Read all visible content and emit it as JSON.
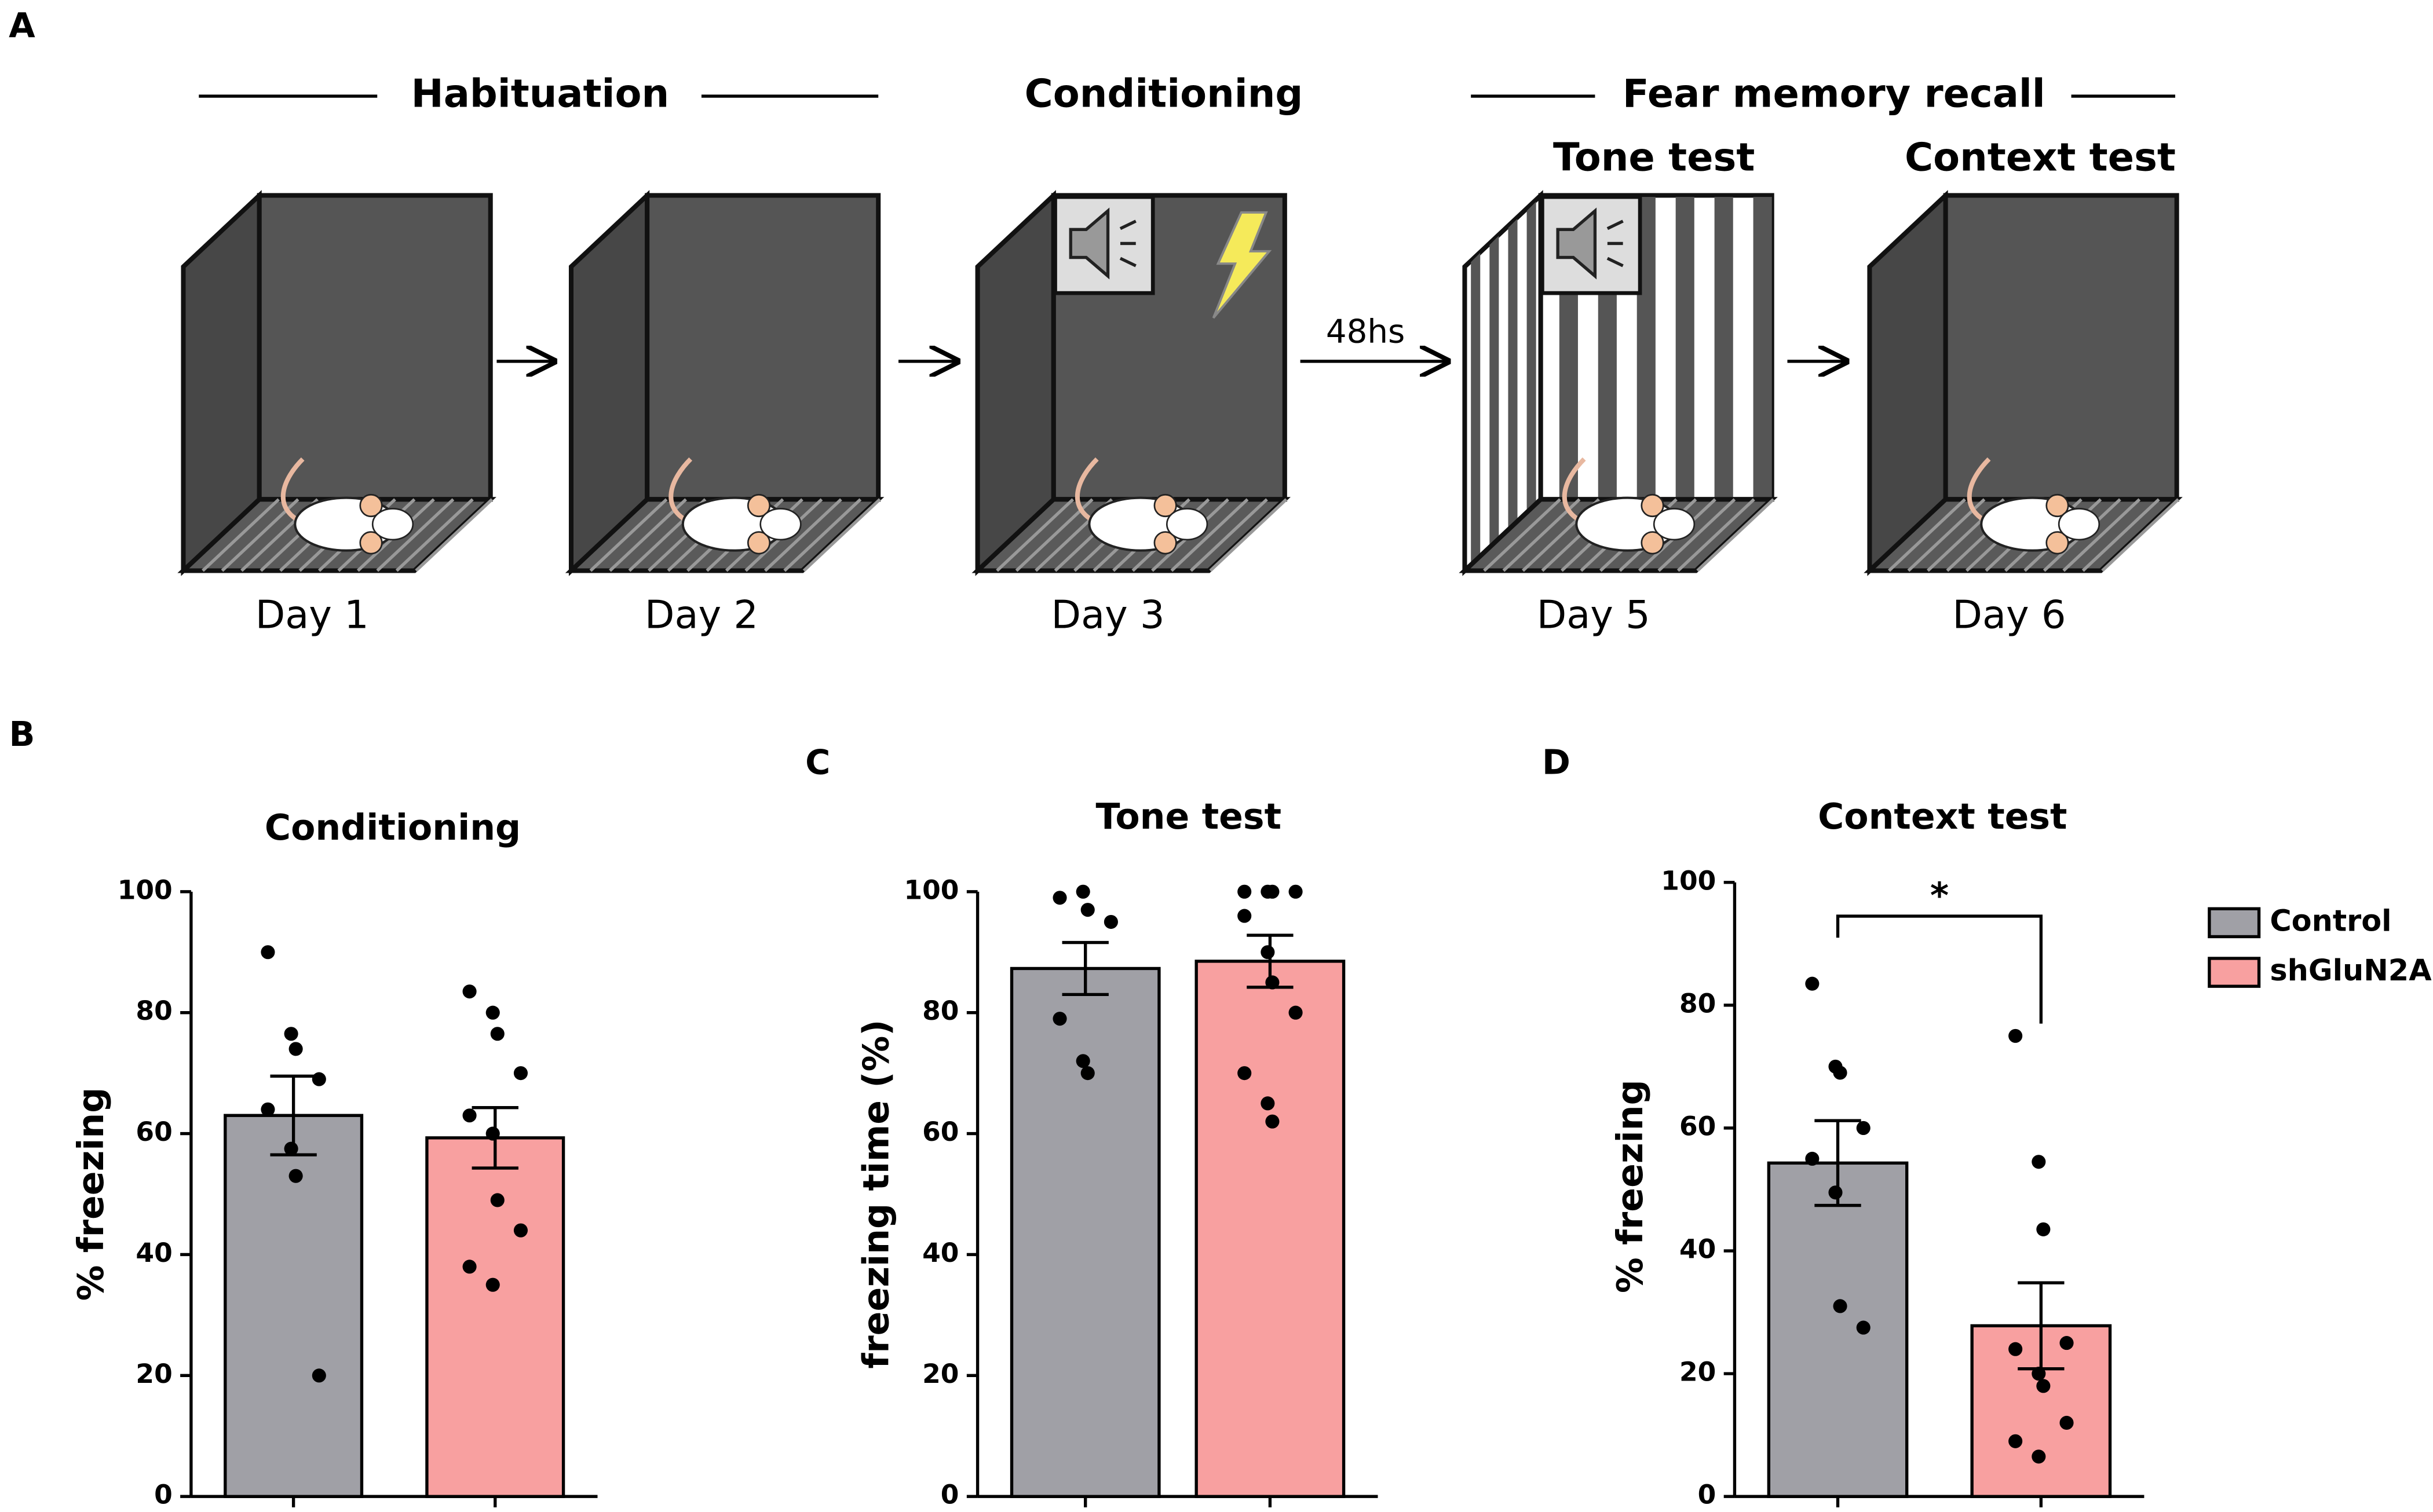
{
  "panel_a": {
    "letter": "A",
    "phases": [
      "Habituation",
      "Conditioning",
      "Fear memory recall"
    ],
    "tests": [
      "Tone test",
      "Context test"
    ],
    "interval": "48hs",
    "days": [
      "Day 1",
      "Day 2",
      "Day 3",
      "Day 5",
      "Day 6"
    ]
  },
  "legend": [
    {
      "name": "Control",
      "color": "#a0a0a6"
    },
    {
      "name": "shGluN2A",
      "color": "#f8a0a0"
    }
  ],
  "chart_data": [
    {
      "type": "bar",
      "panel": "B",
      "title": "Conditioning",
      "y_label": "% freezing",
      "ylim": [
        0,
        100
      ],
      "yticks": [
        0,
        20,
        40,
        60,
        80,
        100
      ],
      "values": [
        63,
        59.3
      ],
      "errors": [
        6.5,
        5
      ],
      "points": [
        [
          90,
          76.5,
          74,
          69,
          64,
          57.5,
          53,
          20
        ],
        [
          83.5,
          80,
          76.5,
          70,
          63,
          60,
          49,
          44,
          38,
          35
        ]
      ]
    },
    {
      "type": "bar",
      "panel": "C",
      "title": "Tone test",
      "y_label": "freezing time (%)",
      "ylim": [
        0,
        100
      ],
      "yticks": [
        0,
        20,
        40,
        60,
        80,
        100
      ],
      "values": [
        87.3,
        88.5
      ],
      "errors": [
        4.3,
        4.3
      ],
      "points": [
        [
          99,
          100,
          97,
          95,
          79,
          72,
          70
        ],
        [
          100,
          100,
          100,
          100,
          96,
          90,
          85,
          80,
          70,
          65,
          62
        ]
      ]
    },
    {
      "type": "bar",
      "panel": "D",
      "title": "Context test",
      "y_label": "% freezing",
      "ylim": [
        0,
        100
      ],
      "yticks": [
        0,
        20,
        40,
        60,
        80,
        100
      ],
      "values": [
        54.3,
        27.8
      ],
      "errors": [
        6.9,
        7
      ],
      "points": [
        [
          83.5,
          70,
          69,
          60,
          55,
          49.5,
          31,
          27.5
        ],
        [
          75,
          54.5,
          43.5,
          25,
          24,
          20,
          18,
          12,
          9,
          6.5
        ]
      ],
      "annotation": "*"
    }
  ]
}
